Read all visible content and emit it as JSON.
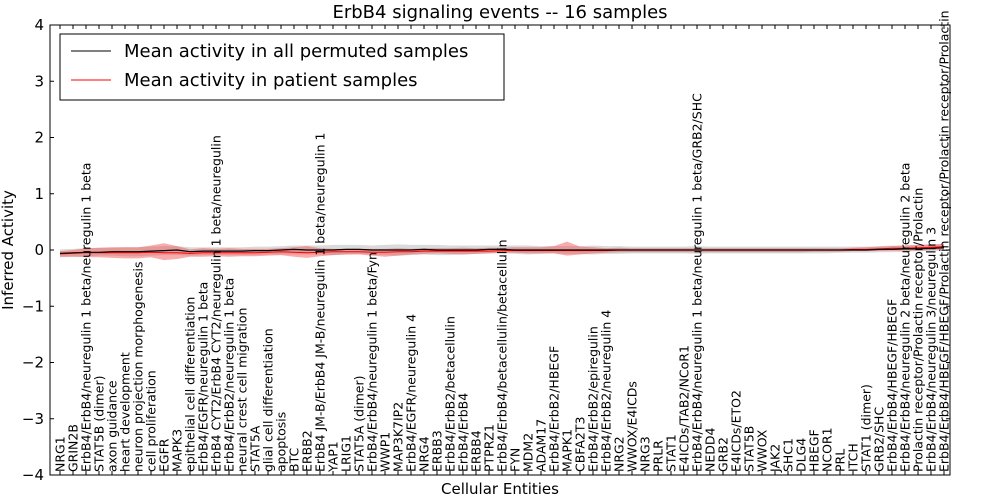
{
  "chart_data": {
    "type": "line",
    "title": "ErbB4 signaling events -- 16 samples",
    "xlabel": "Cellular Entities",
    "ylabel": "Inferred Activity",
    "ylim": [
      -4,
      4
    ],
    "yticks": [
      -4,
      -3,
      -2,
      -1,
      0,
      1,
      2,
      3,
      4
    ],
    "grid": false,
    "legend_position": "top-left",
    "categories": [
      "NRG1",
      "GRIN2B",
      "ErbB4/ErbB4/neuregulin 1 beta/neuregulin 1 beta",
      "STAT5B (dimer)",
      "axon guidance",
      "heart development",
      "neuron projection morphogenesis",
      "cell proliferation",
      "EGFR",
      "MAPK3",
      "epithelial cell differentiation",
      "ErbB4/EGFR/neuregulin 1 beta",
      "ErbB4 CYT2/ErbB4 CYT2/neuregulin 1 beta/neuregulin",
      "ErbB4/ErbB2/neuregulin 1 beta",
      "neural crest cell migration",
      "STAT5A",
      "glial cell differentiation",
      "apoptosis",
      "BTC",
      "ERBB2",
      "ErbB4 JM-B/ErbB4 JM-B/neuregulin 1 beta/neuregulin 1",
      "YAP1",
      "LRIG1",
      "STAT5A (dimer)",
      "ErbB4/ErbB4/neuregulin 1 beta/Fyn",
      "WWP1",
      "MAP3K7IP2",
      "ErbB4/EGFR/neuregulin 4",
      "NRG4",
      "ERBB3",
      "ErbB4/ErbB2/betacellulin",
      "ErbB4/ErbB4",
      "ERBB4",
      "PTPRZ1",
      "ErbB4/ErbB4/betacellulin/betacellulin",
      "FYN",
      "MDM2",
      "ADAM17",
      "ErbB4/ErbB2/HBEGF",
      "MAPK1",
      "CBFA2T3",
      "ErbB4/ErbB2/epiregulin",
      "ErbB4/ErbB2/neuregulin 4",
      "NRG2",
      "WWOX/E4ICDs",
      "NRG3",
      "PRLR",
      "STAT1",
      "E4ICDs/TAB2/NCoR1",
      "ErbB4/ErbB4/neuregulin 1 beta/neuregulin 1 beta/GRB2/SHC",
      "NEDD4",
      "GRB2",
      "E4ICDs/ETO2",
      "STAT5B",
      "WWOX",
      "JAK2",
      "SHC1",
      "DLG4",
      "HBEGF",
      "NCOR1",
      "PRL",
      "ITCH",
      "STAT1 (dimer)",
      "GRB2/SHC",
      "ErbB4/ErbB4/HBEGF/HBEGF",
      "ErbB4/ErbB4/neuregulin 2 beta/neuregulin 2 beta",
      "Prolactin receptor/Prolactin receptor/Prolactin",
      "ErbB4/ErbB4/neuregulin 3/neuregulin 3",
      "ErbB4/ErbB4/HBEGF/HBEGF/Prolactin receptor/Prolactin receptor/Prolactin"
    ],
    "series": [
      {
        "name": "Mean activity in all permuted samples",
        "color": "#000000",
        "values": [
          -0.06,
          -0.05,
          -0.04,
          -0.04,
          -0.03,
          -0.03,
          -0.03,
          -0.02,
          -0.01,
          0.0,
          -0.03,
          -0.02,
          -0.02,
          -0.02,
          -0.02,
          -0.01,
          -0.01,
          0.0,
          0.01,
          0.0,
          0.0,
          0.0,
          0.01,
          0.01,
          0.0,
          0.0,
          0.0,
          0.0,
          0.01,
          0.0,
          0.0,
          0.0,
          0.0,
          0.01,
          0.01,
          0.0,
          0.0,
          0.0,
          0.0,
          0.0,
          0.0,
          0.0,
          0.0,
          0.0,
          0.0,
          0.0,
          0.0,
          0.0,
          0.0,
          0.0,
          0.0,
          0.0,
          0.0,
          0.0,
          0.0,
          0.0,
          0.0,
          0.0,
          0.0,
          0.0,
          0.0,
          0.0,
          0.0,
          0.01,
          0.01,
          0.02,
          0.02,
          0.03,
          0.04
        ],
        "band_lower": [
          -0.13,
          -0.12,
          -0.11,
          -0.1,
          -0.1,
          -0.11,
          -0.11,
          -0.1,
          -0.09,
          -0.09,
          -0.1,
          -0.09,
          -0.09,
          -0.09,
          -0.09,
          -0.09,
          -0.08,
          -0.08,
          -0.08,
          -0.08,
          -0.08,
          -0.09,
          -0.08,
          -0.07,
          -0.08,
          -0.09,
          -0.1,
          -0.09,
          -0.08,
          -0.09,
          -0.09,
          -0.08,
          -0.07,
          -0.06,
          -0.06,
          -0.07,
          -0.08,
          -0.07,
          -0.06,
          -0.07,
          -0.07,
          -0.08,
          -0.07,
          -0.07,
          -0.06,
          -0.06,
          -0.06,
          -0.06,
          -0.06,
          -0.07,
          -0.06,
          -0.06,
          -0.06,
          -0.06,
          -0.06,
          -0.06,
          -0.06,
          -0.06,
          -0.06,
          -0.06,
          -0.05,
          -0.05,
          -0.05,
          -0.04,
          -0.04,
          -0.03,
          -0.02,
          -0.02,
          -0.01
        ],
        "band_upper": [
          0.01,
          0.02,
          0.03,
          0.04,
          0.04,
          0.05,
          0.05,
          0.06,
          0.07,
          0.07,
          0.05,
          0.05,
          0.05,
          0.05,
          0.05,
          0.06,
          0.06,
          0.07,
          0.08,
          0.08,
          0.08,
          0.09,
          0.09,
          0.09,
          0.08,
          0.09,
          0.1,
          0.09,
          0.09,
          0.09,
          0.08,
          0.08,
          0.08,
          0.08,
          0.08,
          0.08,
          0.08,
          0.07,
          0.07,
          0.07,
          0.07,
          0.08,
          0.07,
          0.07,
          0.06,
          0.06,
          0.06,
          0.06,
          0.06,
          0.07,
          0.06,
          0.06,
          0.06,
          0.06,
          0.06,
          0.06,
          0.06,
          0.06,
          0.06,
          0.06,
          0.06,
          0.06,
          0.06,
          0.07,
          0.08,
          0.08,
          0.09,
          0.1,
          0.1
        ]
      },
      {
        "name": "Mean activity in patient samples",
        "color": "#ff0000",
        "values": [
          -0.07,
          -0.06,
          -0.05,
          -0.05,
          -0.05,
          -0.05,
          -0.05,
          -0.04,
          -0.05,
          -0.05,
          -0.06,
          -0.05,
          -0.05,
          -0.05,
          -0.05,
          -0.05,
          -0.04,
          -0.03,
          -0.04,
          -0.05,
          -0.04,
          -0.03,
          -0.03,
          -0.03,
          -0.04,
          -0.04,
          -0.03,
          -0.03,
          -0.02,
          -0.02,
          -0.02,
          -0.02,
          -0.02,
          -0.02,
          -0.01,
          -0.01,
          -0.01,
          -0.01,
          -0.01,
          -0.01,
          -0.01,
          -0.01,
          -0.01,
          0.0,
          0.0,
          0.0,
          0.0,
          0.0,
          0.0,
          0.0,
          0.0,
          0.0,
          0.0,
          0.0,
          0.0,
          0.0,
          0.0,
          0.0,
          0.0,
          0.0,
          0.0,
          0.01,
          0.01,
          0.02,
          0.03,
          0.03,
          0.04,
          0.05,
          0.06
        ],
        "band_lower": [
          -0.12,
          -0.12,
          -0.13,
          -0.13,
          -0.14,
          -0.15,
          -0.15,
          -0.13,
          -0.18,
          -0.16,
          -0.12,
          -0.12,
          -0.11,
          -0.12,
          -0.11,
          -0.11,
          -0.1,
          -0.09,
          -0.12,
          -0.14,
          -0.11,
          -0.09,
          -0.08,
          -0.08,
          -0.1,
          -0.12,
          -0.1,
          -0.08,
          -0.07,
          -0.06,
          -0.07,
          -0.08,
          -0.07,
          -0.06,
          -0.05,
          -0.05,
          -0.06,
          -0.06,
          -0.06,
          -0.1,
          -0.08,
          -0.06,
          -0.05,
          -0.04,
          -0.04,
          -0.04,
          -0.04,
          -0.04,
          -0.04,
          -0.04,
          -0.04,
          -0.04,
          -0.04,
          -0.04,
          -0.04,
          -0.04,
          -0.04,
          -0.04,
          -0.03,
          -0.03,
          -0.03,
          -0.02,
          -0.02,
          -0.02,
          -0.01,
          -0.01,
          -0.01,
          0.0,
          0.01
        ],
        "band_upper": [
          -0.02,
          0.0,
          0.03,
          0.04,
          0.05,
          0.05,
          0.05,
          0.08,
          0.12,
          0.07,
          0.01,
          0.03,
          0.02,
          0.03,
          0.02,
          0.02,
          0.02,
          0.03,
          0.05,
          0.07,
          0.03,
          0.02,
          0.02,
          0.02,
          0.02,
          0.02,
          0.03,
          0.02,
          0.03,
          0.03,
          0.03,
          0.04,
          0.03,
          0.04,
          0.04,
          0.05,
          0.05,
          0.05,
          0.07,
          0.15,
          0.06,
          0.05,
          0.03,
          0.04,
          0.03,
          0.03,
          0.03,
          0.03,
          0.03,
          0.03,
          0.03,
          0.03,
          0.03,
          0.03,
          0.03,
          0.03,
          0.03,
          0.03,
          0.03,
          0.03,
          0.03,
          0.04,
          0.05,
          0.06,
          0.07,
          0.08,
          0.09,
          0.1,
          0.11
        ]
      }
    ]
  }
}
